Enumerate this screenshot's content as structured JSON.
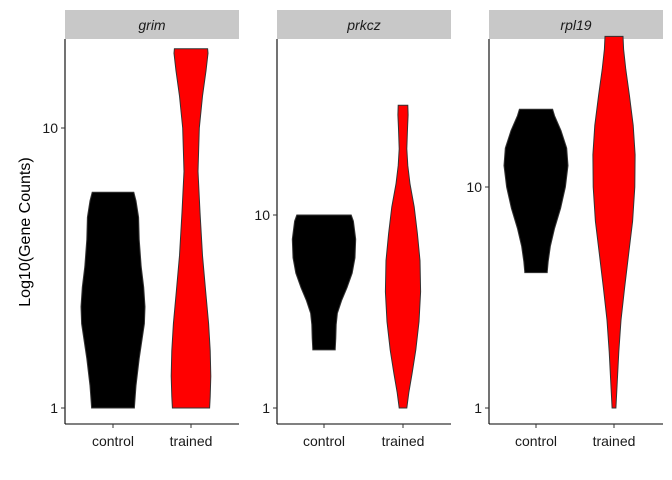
{
  "chart_data": {
    "type": "violin",
    "ylabel": "Log10(Gene Counts)",
    "xlabel": "",
    "scale_y": "log10",
    "categories": [
      "control",
      "trained"
    ],
    "colors": {
      "control": "#000000",
      "trained": "#ff0000"
    },
    "panels": [
      {
        "name": "grim",
        "y_ticks": [
          {
            "value": 1,
            "label": "1"
          },
          {
            "value": 10,
            "label": "10"
          }
        ],
        "violins": [
          {
            "group": "control",
            "min": 1,
            "max": 5.9,
            "profile": [
              [
                1,
                0.67
              ],
              [
                1.05,
                0.68
              ],
              [
                1.2,
                0.72
              ],
              [
                1.5,
                0.82
              ],
              [
                2.0,
                0.98
              ],
              [
                2.3,
                1.0
              ],
              [
                2.7,
                0.96
              ],
              [
                3.2,
                0.88
              ],
              [
                4.0,
                0.82
              ],
              [
                4.8,
                0.8
              ],
              [
                5.5,
                0.72
              ],
              [
                5.9,
                0.65
              ]
            ]
          },
          {
            "group": "trained",
            "min": 1,
            "max": 19.2,
            "profile": [
              [
                1,
                0.58
              ],
              [
                1.1,
                0.6
              ],
              [
                1.3,
                0.62
              ],
              [
                1.6,
                0.6
              ],
              [
                2.0,
                0.55
              ],
              [
                2.6,
                0.46
              ],
              [
                3.5,
                0.36
              ],
              [
                5,
                0.28
              ],
              [
                7,
                0.22
              ],
              [
                10,
                0.26
              ],
              [
                13,
                0.36
              ],
              [
                16,
                0.47
              ],
              [
                18.5,
                0.53
              ],
              [
                19.2,
                0.52
              ]
            ]
          }
        ]
      },
      {
        "name": "prkcz",
        "y_ticks": [
          {
            "value": 1,
            "label": "1"
          },
          {
            "value": 10,
            "label": "10"
          }
        ],
        "violins": [
          {
            "group": "control",
            "min": 2,
            "max": 10,
            "profile": [
              [
                2,
                0.35
              ],
              [
                2.3,
                0.37
              ],
              [
                2.7,
                0.38
              ],
              [
                3.1,
                0.42
              ],
              [
                3.6,
                0.55
              ],
              [
                4.2,
                0.72
              ],
              [
                5,
                0.88
              ],
              [
                6,
                0.97
              ],
              [
                7.5,
                0.99
              ],
              [
                9.3,
                0.92
              ],
              [
                10,
                0.85
              ]
            ]
          },
          {
            "group": "trained",
            "min": 1,
            "max": 37,
            "profile": [
              [
                1,
                0.12
              ],
              [
                1.2,
                0.18
              ],
              [
                1.5,
                0.28
              ],
              [
                2,
                0.4
              ],
              [
                2.8,
                0.5
              ],
              [
                4,
                0.55
              ],
              [
                5.8,
                0.53
              ],
              [
                8,
                0.45
              ],
              [
                11,
                0.35
              ],
              [
                14.5,
                0.22
              ],
              [
                18,
                0.15
              ],
              [
                22,
                0.12
              ],
              [
                28,
                0.14
              ],
              [
                33,
                0.16
              ],
              [
                37,
                0.15
              ]
            ]
          }
        ]
      },
      {
        "name": "rpl19",
        "y_ticks": [
          {
            "value": 1,
            "label": "1"
          },
          {
            "value": 10,
            "label": "10"
          }
        ],
        "violins": [
          {
            "group": "control",
            "min": 4.1,
            "max": 22.5,
            "profile": [
              [
                4.1,
                0.35
              ],
              [
                4.6,
                0.38
              ],
              [
                5.4,
                0.45
              ],
              [
                6.5,
                0.58
              ],
              [
                8,
                0.77
              ],
              [
                10,
                0.92
              ],
              [
                12.5,
                1.0
              ],
              [
                15,
                0.96
              ],
              [
                18,
                0.78
              ],
              [
                21,
                0.58
              ],
              [
                22.5,
                0.52
              ]
            ]
          },
          {
            "group": "trained",
            "min": 1,
            "max": 48,
            "profile": [
              [
                1,
                0.06
              ],
              [
                1.3,
                0.1
              ],
              [
                1.8,
                0.15
              ],
              [
                2.5,
                0.22
              ],
              [
                3.5,
                0.33
              ],
              [
                5,
                0.46
              ],
              [
                7,
                0.58
              ],
              [
                10,
                0.65
              ],
              [
                14,
                0.66
              ],
              [
                19,
                0.6
              ],
              [
                26,
                0.48
              ],
              [
                34,
                0.37
              ],
              [
                42,
                0.3
              ],
              [
                48,
                0.28
              ]
            ]
          }
        ]
      }
    ]
  }
}
